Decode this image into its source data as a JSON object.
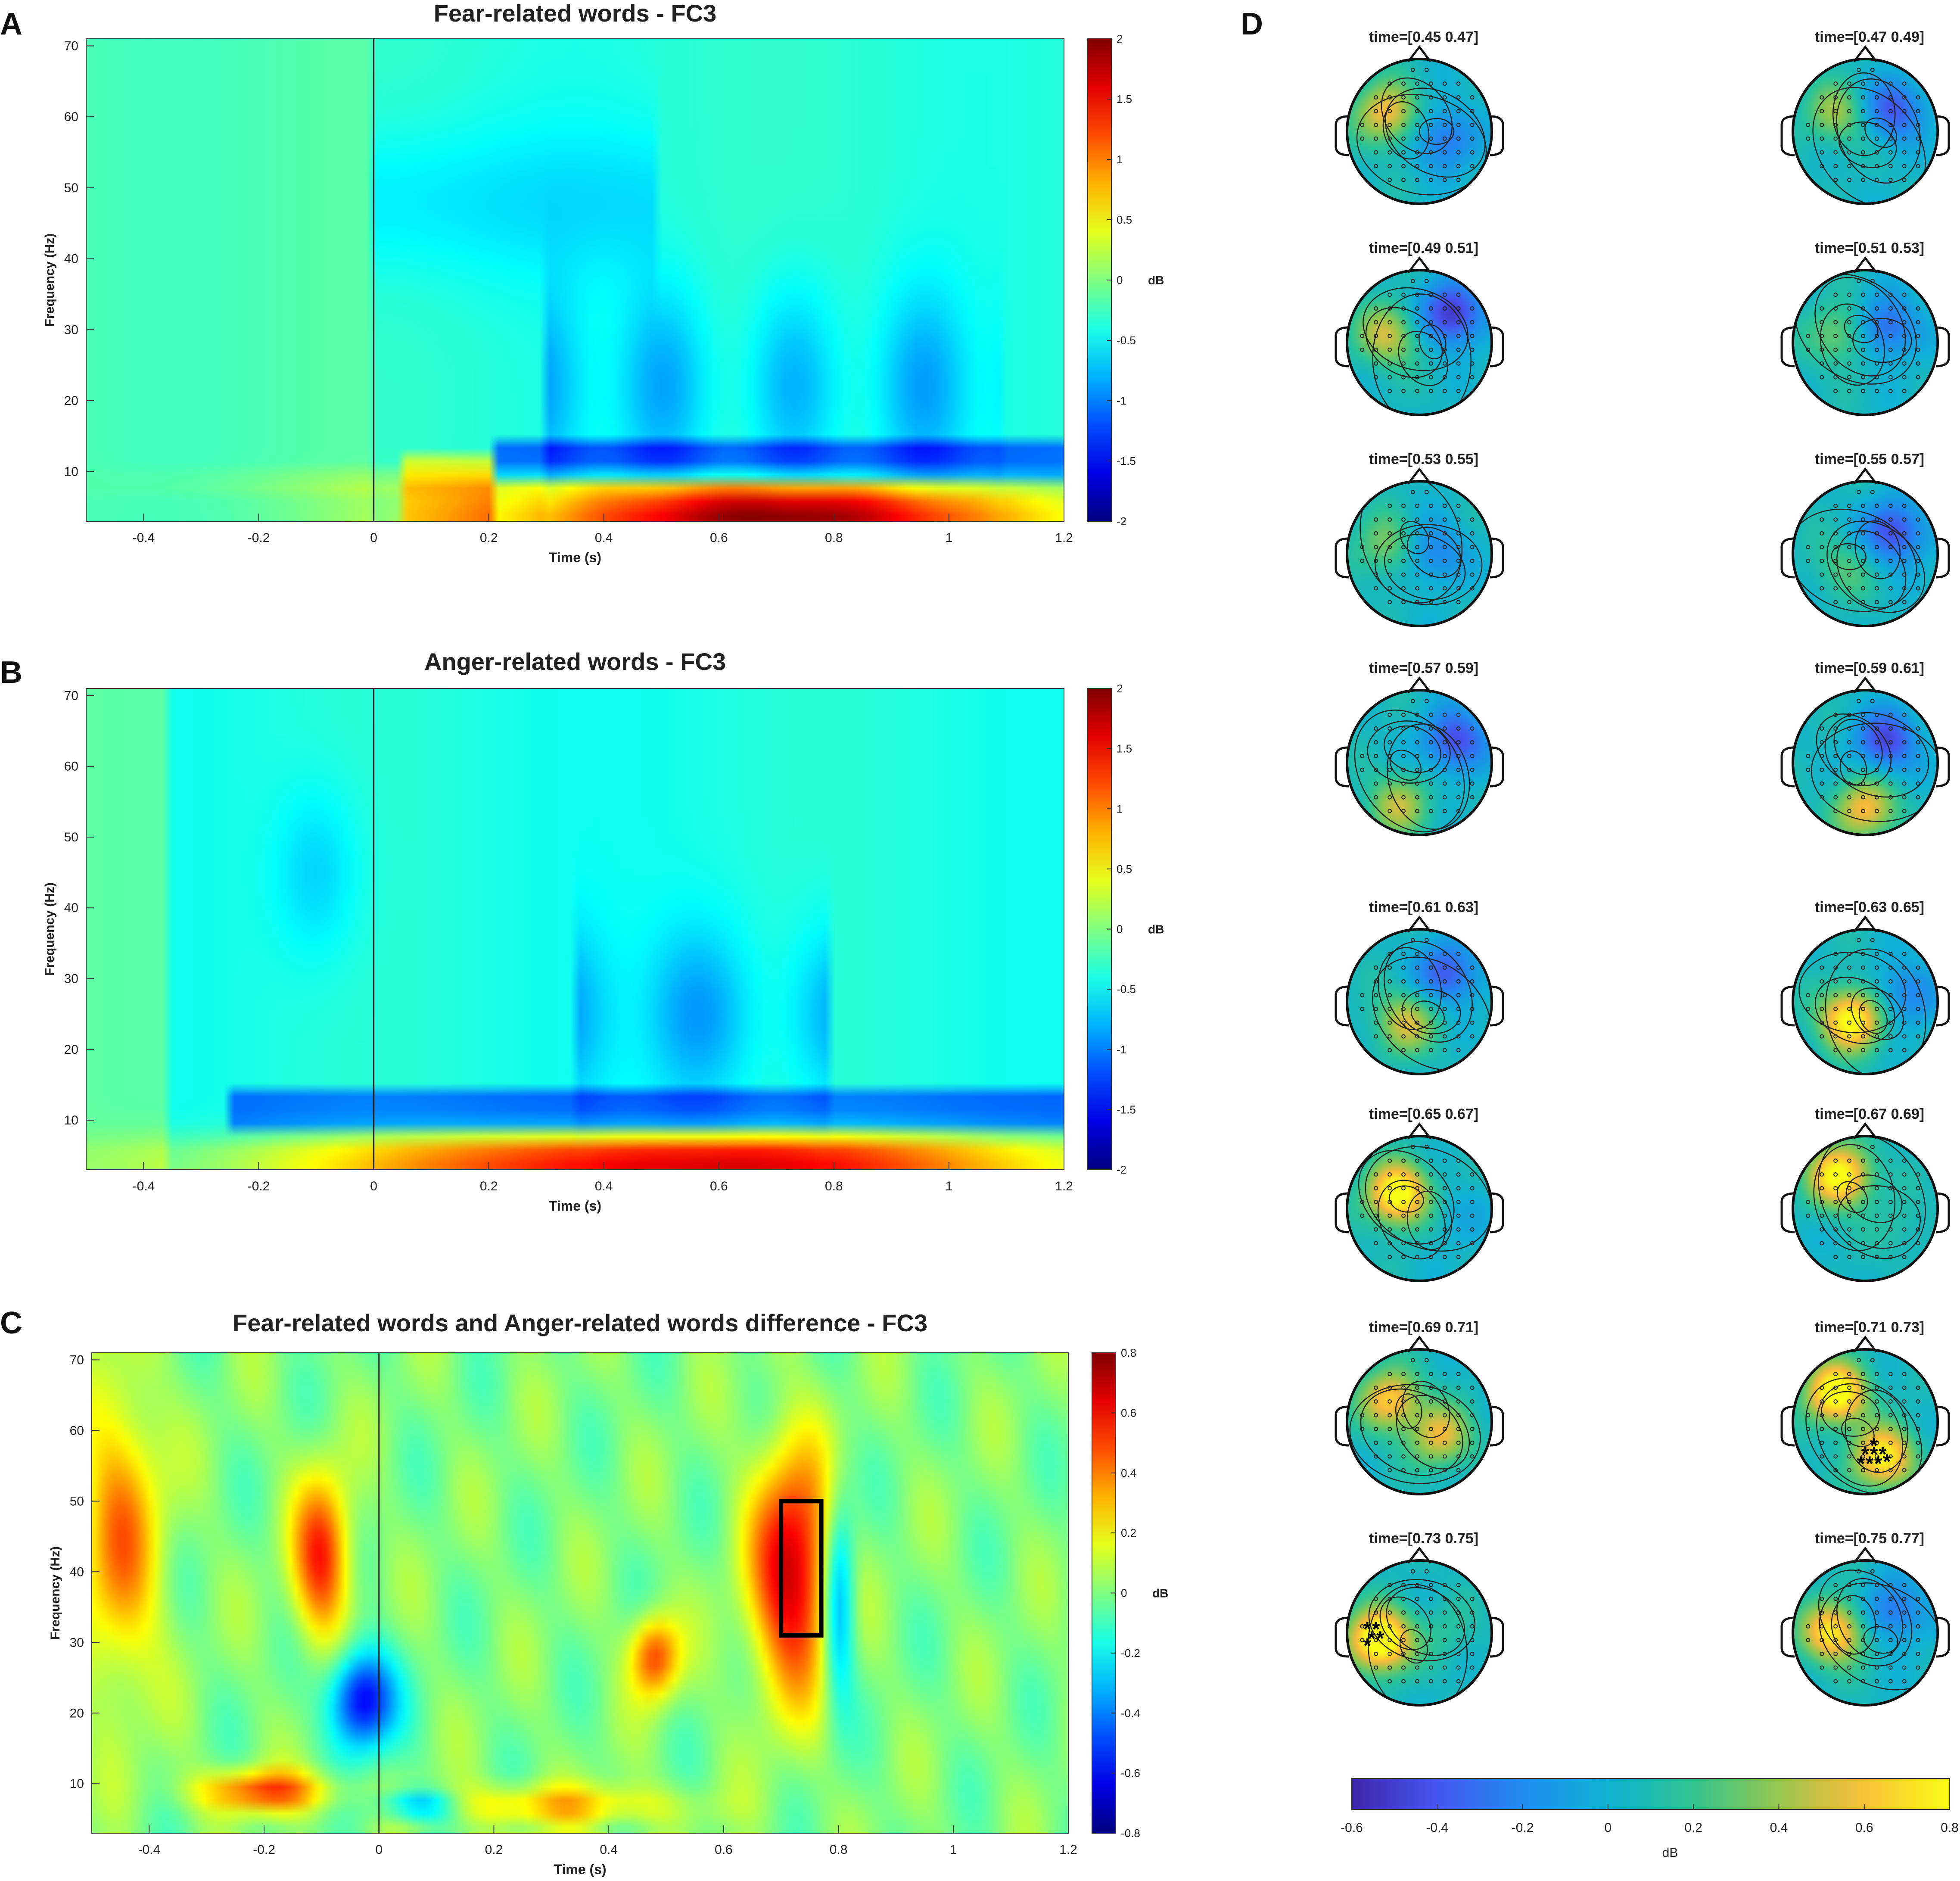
{
  "chart_data": [
    {
      "type": "heatmap",
      "panel": "A",
      "title": "Fear-related words - FC3",
      "xlabel": "Time (s)",
      "ylabel": "Frequency (Hz)",
      "xlim": [
        -0.5,
        1.2
      ],
      "ylim": [
        3,
        71
      ],
      "x_ticks": [
        -0.4,
        -0.2,
        0,
        0.2,
        0.4,
        0.6,
        0.8,
        1,
        1.2
      ],
      "y_ticks": [
        10,
        20,
        30,
        40,
        50,
        60,
        70
      ],
      "x_tick_labels": [
        "-0.4",
        "-0.2",
        "0",
        "0.2",
        "0.4",
        "0.6",
        "0.8",
        "1",
        "1.2"
      ],
      "y_tick_labels": [
        "10",
        "20",
        "30",
        "40",
        "50",
        "60",
        "70"
      ],
      "colorbar": {
        "label": "dB",
        "range": [
          -2,
          2
        ],
        "ticks": [
          "-2",
          "-1.5",
          "-1",
          "-0.5",
          "0",
          "0.5",
          "1",
          "1.5",
          "2"
        ]
      },
      "colormap": "jet"
    },
    {
      "type": "heatmap",
      "panel": "B",
      "title": "Anger-related words - FC3",
      "xlabel": "Time (s)",
      "ylabel": "Frequency (Hz)",
      "xlim": [
        -0.5,
        1.2
      ],
      "ylim": [
        3,
        71
      ],
      "x_ticks": [
        -0.4,
        -0.2,
        0,
        0.2,
        0.4,
        0.6,
        0.8,
        1,
        1.2
      ],
      "y_ticks": [
        10,
        20,
        30,
        40,
        50,
        60,
        70
      ],
      "x_tick_labels": [
        "-0.4",
        "-0.2",
        "0",
        "0.2",
        "0.4",
        "0.6",
        "0.8",
        "1",
        "1.2"
      ],
      "y_tick_labels": [
        "10",
        "20",
        "30",
        "40",
        "50",
        "60",
        "70"
      ],
      "colorbar": {
        "label": "dB",
        "range": [
          -2,
          2
        ],
        "ticks": [
          "-2",
          "-1.5",
          "-1",
          "-0.5",
          "0",
          "0.5",
          "1",
          "1.5",
          "2"
        ]
      },
      "colormap": "jet"
    },
    {
      "type": "heatmap",
      "panel": "C",
      "title": "Fear-related words and Anger-related words difference - FC3",
      "xlabel": "Time (s)",
      "ylabel": "Frequency (Hz)",
      "xlim": [
        -0.5,
        1.2
      ],
      "ylim": [
        3,
        71
      ],
      "x_ticks": [
        -0.4,
        -0.2,
        0,
        0.2,
        0.4,
        0.6,
        0.8,
        1,
        1.2
      ],
      "y_ticks": [
        10,
        20,
        30,
        40,
        50,
        60,
        70
      ],
      "x_tick_labels": [
        "-0.4",
        "-0.2",
        "0",
        "0.2",
        "0.4",
        "0.6",
        "0.8",
        "1",
        "1.2"
      ],
      "y_tick_labels": [
        "10",
        "20",
        "30",
        "40",
        "50",
        "60",
        "70"
      ],
      "colorbar": {
        "label": "dB",
        "range": [
          -0.8,
          0.8
        ],
        "ticks": [
          "-0.8",
          "-0.6",
          "-0.4",
          "-0.2",
          "0",
          "0.2",
          "0.4",
          "0.6",
          "0.8"
        ]
      },
      "colormap": "jet",
      "highlight_box": {
        "time": [
          0.7,
          0.77
        ],
        "frequency": [
          31,
          50
        ]
      }
    },
    {
      "type": "topomap",
      "panel": "D",
      "colormap": "parula",
      "colorbar": {
        "label": "dB",
        "range": [
          -0.6,
          0.8
        ],
        "ticks": [
          "-0.6",
          "-0.4",
          "-0.2",
          "0",
          "0.2",
          "0.4",
          "0.6",
          "0.8"
        ]
      },
      "maps": [
        {
          "label": "time=[0.45 0.47]"
        },
        {
          "label": "time=[0.47 0.49]"
        },
        {
          "label": "time=[0.49 0.51]"
        },
        {
          "label": "time=[0.51 0.53]"
        },
        {
          "label": "time=[0.53 0.55]"
        },
        {
          "label": "time=[0.55 0.57]"
        },
        {
          "label": "time=[0.57 0.59]"
        },
        {
          "label": "time=[0.59 0.61]"
        },
        {
          "label": "time=[0.61 0.63]"
        },
        {
          "label": "time=[0.63 0.65]"
        },
        {
          "label": "time=[0.65 0.67]"
        },
        {
          "label": "time=[0.67 0.69]"
        },
        {
          "label": "time=[0.69 0.71]"
        },
        {
          "label": "time=[0.71 0.73]",
          "significant": true
        },
        {
          "label": "time=[0.73 0.75]",
          "significant": true
        },
        {
          "label": "time=[0.75 0.77]"
        }
      ]
    }
  ],
  "panel_letters": {
    "a": "A",
    "b": "B",
    "c": "C",
    "d": "D"
  }
}
